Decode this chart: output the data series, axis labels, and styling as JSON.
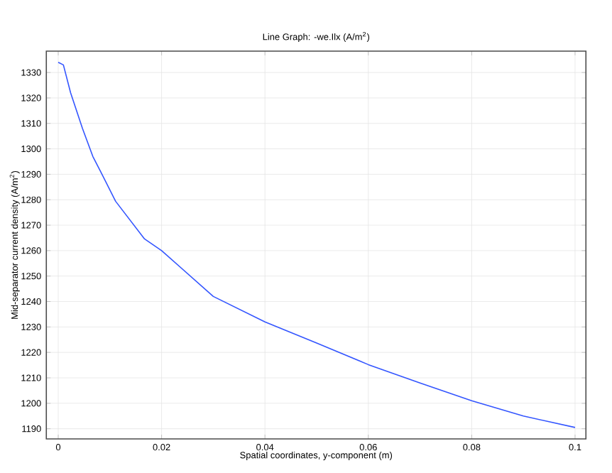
{
  "chart_data": {
    "type": "line",
    "title": "Line Graph: -we.Ilx (A/m$^{2}$)",
    "xlabel": "Spatial coordinates, y-component (m)",
    "ylabel": "Mid-separator current density (A/m$^{2}$)",
    "x": [
      0,
      0.001,
      0.0024,
      0.0047,
      0.0067,
      0.0081,
      0.0111,
      0.0167,
      0.02,
      0.03,
      0.04,
      0.05,
      0.06,
      0.07,
      0.08,
      0.09,
      0.1
    ],
    "series": [
      {
        "color": "#3355ff",
        "values": [
          1334,
          1333,
          1322,
          1308,
          1297,
          1291.5,
          1279.4,
          1264.6,
          1260,
          1242,
          1232,
          1223.7,
          1215.2,
          1208,
          1201,
          1195,
          1190.5
        ]
      }
    ],
    "xlim": [
      -0.0023,
      0.1021
    ],
    "ylim": [
      1186,
      1338.4
    ],
    "xticks": [
      0,
      0.02,
      0.04,
      0.06,
      0.08,
      0.1
    ],
    "yticks": [
      1190,
      1200,
      1210,
      1220,
      1230,
      1240,
      1250,
      1260,
      1270,
      1280,
      1290,
      1300,
      1310,
      1320,
      1330
    ],
    "grid": true,
    "line_style": "solid",
    "marker": "none"
  }
}
